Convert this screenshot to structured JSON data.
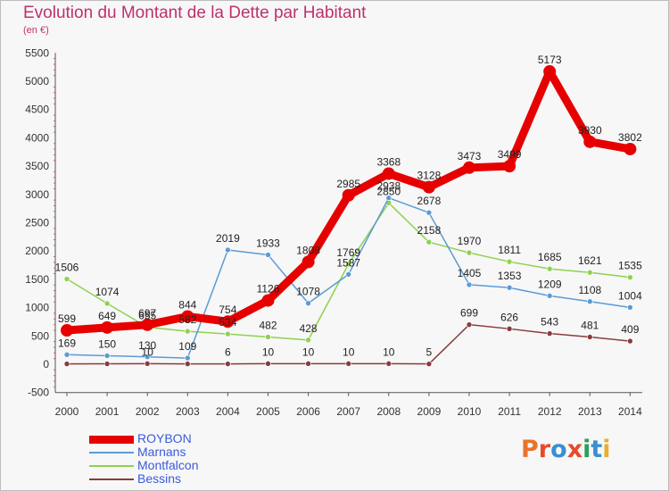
{
  "title": "Evolution du Montant de la Dette par Habitant",
  "subtitle": "(en €)",
  "logo": {
    "text": "Proxiti",
    "colors": [
      "#e8732a",
      "#e84a2a",
      "#3a8fd0",
      "#e84a2a",
      "#2aa05a",
      "#3a8fd0",
      "#e8b02a"
    ]
  },
  "chart_data": {
    "type": "line",
    "x": [
      "2000",
      "2001",
      "2002",
      "2003",
      "2004",
      "2005",
      "2006",
      "2007",
      "2008",
      "2009",
      "2010",
      "2011",
      "2012",
      "2013",
      "2014"
    ],
    "ylim": [
      -500,
      5500
    ],
    "yticks": [
      "-500",
      "0",
      "500",
      "1000",
      "1500",
      "2000",
      "2500",
      "3000",
      "3500",
      "4000",
      "4500",
      "5000",
      "5500"
    ],
    "grid": false,
    "legend": "bottom-left",
    "series": [
      {
        "name": "ROYBON",
        "color": "#e60000",
        "width": 9,
        "marker": 7,
        "values": [
          599,
          649,
          697,
          844,
          754,
          1126,
          1808,
          2985,
          3368,
          3128,
          3473,
          3499,
          5173,
          3930,
          3802
        ],
        "labels": [
          "599",
          "649",
          "697",
          "844",
          "754",
          "1126",
          "1808",
          "2985",
          "3368",
          "3128",
          "3473",
          "3499",
          "5173",
          "3930",
          "3802"
        ]
      },
      {
        "name": "Marnans",
        "color": "#5b9bd5",
        "width": 1.5,
        "marker": 3,
        "values": [
          169,
          150,
          130,
          109,
          2019,
          1933,
          1078,
          1587,
          2938,
          2678,
          1405,
          1353,
          1209,
          1108,
          1004
        ],
        "labels": [
          "169",
          "150",
          "130",
          "109",
          "2019",
          "1933",
          "1078",
          "1587",
          "2938",
          "2678",
          "1405",
          "1353",
          "1209",
          "1108",
          "1004"
        ]
      },
      {
        "name": "Montfalcon",
        "color": "#8fd14f",
        "width": 1.5,
        "marker": 3,
        "values": [
          1506,
          1074,
          655,
          582,
          534,
          482,
          428,
          1769,
          2850,
          2158,
          1970,
          1811,
          1685,
          1621,
          1535
        ],
        "labels": [
          "1506",
          "1074",
          "655",
          "582",
          "534",
          "482",
          "428",
          "1769",
          "2850",
          "2158",
          "1970",
          "1811",
          "1685",
          "1621",
          "1535"
        ]
      },
      {
        "name": "Bessins",
        "color": "#8a3b3b",
        "width": 1.5,
        "marker": 3,
        "values": [
          6,
          7,
          10,
          6,
          6,
          10,
          10,
          10,
          10,
          5,
          699,
          626,
          543,
          481,
          409
        ],
        "labels": [
          "",
          "",
          "10",
          "",
          "6",
          "10",
          "10",
          "10",
          "10",
          "5",
          "699",
          "626",
          "543",
          "481",
          "409"
        ]
      }
    ]
  }
}
